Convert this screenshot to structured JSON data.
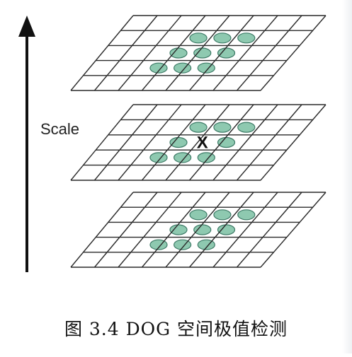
{
  "diagram": {
    "axis_label": "Scale",
    "caption": "图 3.4 DOG 空间极值检测",
    "layers": [
      {
        "name": "upper-scale",
        "grid_rows": 5,
        "grid_cols": 8
      },
      {
        "name": "current-scale",
        "grid_rows": 5,
        "grid_cols": 8,
        "center_marker": "X"
      },
      {
        "name": "lower-scale",
        "grid_rows": 5,
        "grid_cols": 8
      }
    ],
    "colors": {
      "grid_line": "#2a2a2a",
      "neighbor_fill": "#8ec9b0",
      "neighbor_stroke": "#3d7a66",
      "axis": "#111111"
    }
  }
}
